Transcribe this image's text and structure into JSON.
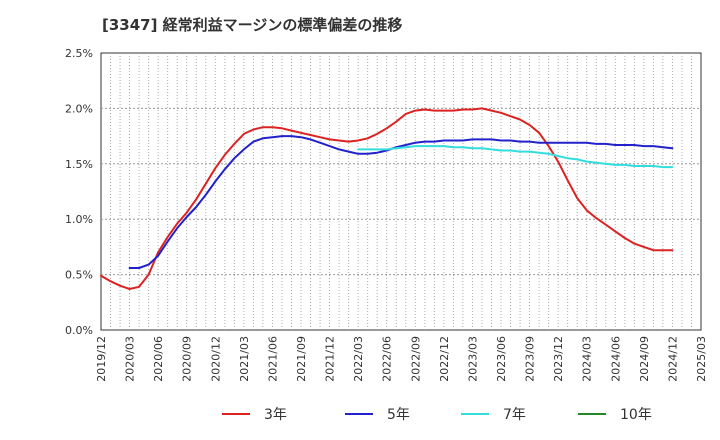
{
  "chart_data": {
    "type": "line",
    "title": "[3347]  経常利益マージンの標準偏差の推移",
    "xlabel": "",
    "ylabel": "",
    "ylim": [
      0,
      2.5
    ],
    "xlim": [
      "2019/12",
      "2025/03"
    ],
    "y_ticks": [
      "0.0%",
      "0.5%",
      "1.0%",
      "1.5%",
      "2.0%",
      "2.5%"
    ],
    "x_ticks": [
      "2019/12",
      "2020/03",
      "2020/06",
      "2020/09",
      "2020/12",
      "2021/03",
      "2021/06",
      "2021/09",
      "2021/12",
      "2022/03",
      "2022/06",
      "2022/09",
      "2022/12",
      "2023/03",
      "2023/06",
      "2023/09",
      "2023/12",
      "2024/03",
      "2024/06",
      "2024/09",
      "2024/12",
      "2025/03"
    ],
    "grid": true,
    "legend_position": "bottom",
    "colors": {
      "3年": "#dd2222",
      "5年": "#2222cc",
      "7年": "#33dddd",
      "10年": "#228822"
    },
    "series": [
      {
        "name": "3年",
        "x": [
          "2019/12",
          "2020/01",
          "2020/02",
          "2020/03",
          "2020/04",
          "2020/05",
          "2020/06",
          "2020/07",
          "2020/08",
          "2020/09",
          "2020/10",
          "2020/11",
          "2020/12",
          "2021/01",
          "2021/02",
          "2021/03",
          "2021/04",
          "2021/05",
          "2021/06",
          "2021/07",
          "2021/08",
          "2021/09",
          "2021/10",
          "2021/11",
          "2021/12",
          "2022/01",
          "2022/02",
          "2022/03",
          "2022/04",
          "2022/05",
          "2022/06",
          "2022/07",
          "2022/08",
          "2022/09",
          "2022/10",
          "2022/11",
          "2022/12",
          "2023/01",
          "2023/02",
          "2023/03",
          "2023/04",
          "2023/05",
          "2023/06",
          "2023/07",
          "2023/08",
          "2023/09",
          "2023/10",
          "2023/11",
          "2023/12",
          "2024/01",
          "2024/02",
          "2024/03",
          "2024/04",
          "2024/05",
          "2024/06",
          "2024/07",
          "2024/08",
          "2024/09",
          "2024/10",
          "2024/11",
          "2024/12"
        ],
        "values": [
          0.49,
          0.44,
          0.4,
          0.37,
          0.39,
          0.5,
          0.7,
          0.84,
          0.96,
          1.06,
          1.18,
          1.32,
          1.46,
          1.58,
          1.68,
          1.77,
          1.81,
          1.83,
          1.83,
          1.82,
          1.8,
          1.78,
          1.76,
          1.74,
          1.72,
          1.71,
          1.7,
          1.71,
          1.73,
          1.77,
          1.82,
          1.88,
          1.95,
          1.98,
          1.99,
          1.98,
          1.98,
          1.98,
          1.99,
          1.99,
          2.0,
          1.98,
          1.96,
          1.93,
          1.9,
          1.85,
          1.78,
          1.66,
          1.52,
          1.35,
          1.19,
          1.08,
          1.01,
          0.95,
          0.89,
          0.83,
          0.78,
          0.75,
          0.72,
          0.72,
          0.72
        ]
      },
      {
        "name": "5年",
        "x": [
          "2020/03",
          "2020/04",
          "2020/05",
          "2020/06",
          "2020/07",
          "2020/08",
          "2020/09",
          "2020/10",
          "2020/11",
          "2020/12",
          "2021/01",
          "2021/02",
          "2021/03",
          "2021/04",
          "2021/05",
          "2021/06",
          "2021/07",
          "2021/08",
          "2021/09",
          "2021/10",
          "2021/11",
          "2021/12",
          "2022/01",
          "2022/02",
          "2022/03",
          "2022/04",
          "2022/05",
          "2022/06",
          "2022/07",
          "2022/08",
          "2022/09",
          "2022/10",
          "2022/11",
          "2022/12",
          "2023/01",
          "2023/02",
          "2023/03",
          "2023/04",
          "2023/05",
          "2023/06",
          "2023/07",
          "2023/08",
          "2023/09",
          "2023/10",
          "2023/11",
          "2023/12",
          "2024/01",
          "2024/02",
          "2024/03",
          "2024/04",
          "2024/05",
          "2024/06",
          "2024/07",
          "2024/08",
          "2024/09",
          "2024/10",
          "2024/11",
          "2024/12"
        ],
        "values": [
          0.56,
          0.56,
          0.59,
          0.67,
          0.8,
          0.92,
          1.02,
          1.11,
          1.22,
          1.34,
          1.45,
          1.55,
          1.63,
          1.7,
          1.73,
          1.74,
          1.75,
          1.75,
          1.74,
          1.72,
          1.69,
          1.66,
          1.63,
          1.61,
          1.59,
          1.59,
          1.6,
          1.62,
          1.65,
          1.67,
          1.69,
          1.7,
          1.7,
          1.71,
          1.71,
          1.71,
          1.72,
          1.72,
          1.72,
          1.71,
          1.71,
          1.7,
          1.7,
          1.69,
          1.69,
          1.69,
          1.69,
          1.69,
          1.69,
          1.68,
          1.68,
          1.67,
          1.67,
          1.67,
          1.66,
          1.66,
          1.65,
          1.64
        ]
      },
      {
        "name": "7年",
        "x": [
          "2022/03",
          "2022/04",
          "2022/05",
          "2022/06",
          "2022/07",
          "2022/08",
          "2022/09",
          "2022/10",
          "2022/11",
          "2022/12",
          "2023/01",
          "2023/02",
          "2023/03",
          "2023/04",
          "2023/05",
          "2023/06",
          "2023/07",
          "2023/08",
          "2023/09",
          "2023/10",
          "2023/11",
          "2023/12",
          "2024/01",
          "2024/02",
          "2024/03",
          "2024/04",
          "2024/05",
          "2024/06",
          "2024/07",
          "2024/08",
          "2024/09",
          "2024/10",
          "2024/11",
          "2024/12"
        ],
        "values": [
          1.63,
          1.63,
          1.63,
          1.63,
          1.64,
          1.65,
          1.66,
          1.66,
          1.66,
          1.66,
          1.65,
          1.65,
          1.64,
          1.64,
          1.63,
          1.62,
          1.62,
          1.61,
          1.61,
          1.6,
          1.59,
          1.57,
          1.55,
          1.54,
          1.52,
          1.51,
          1.5,
          1.49,
          1.49,
          1.48,
          1.48,
          1.48,
          1.47,
          1.47
        ]
      },
      {
        "name": "10年",
        "x": [],
        "values": []
      }
    ]
  }
}
